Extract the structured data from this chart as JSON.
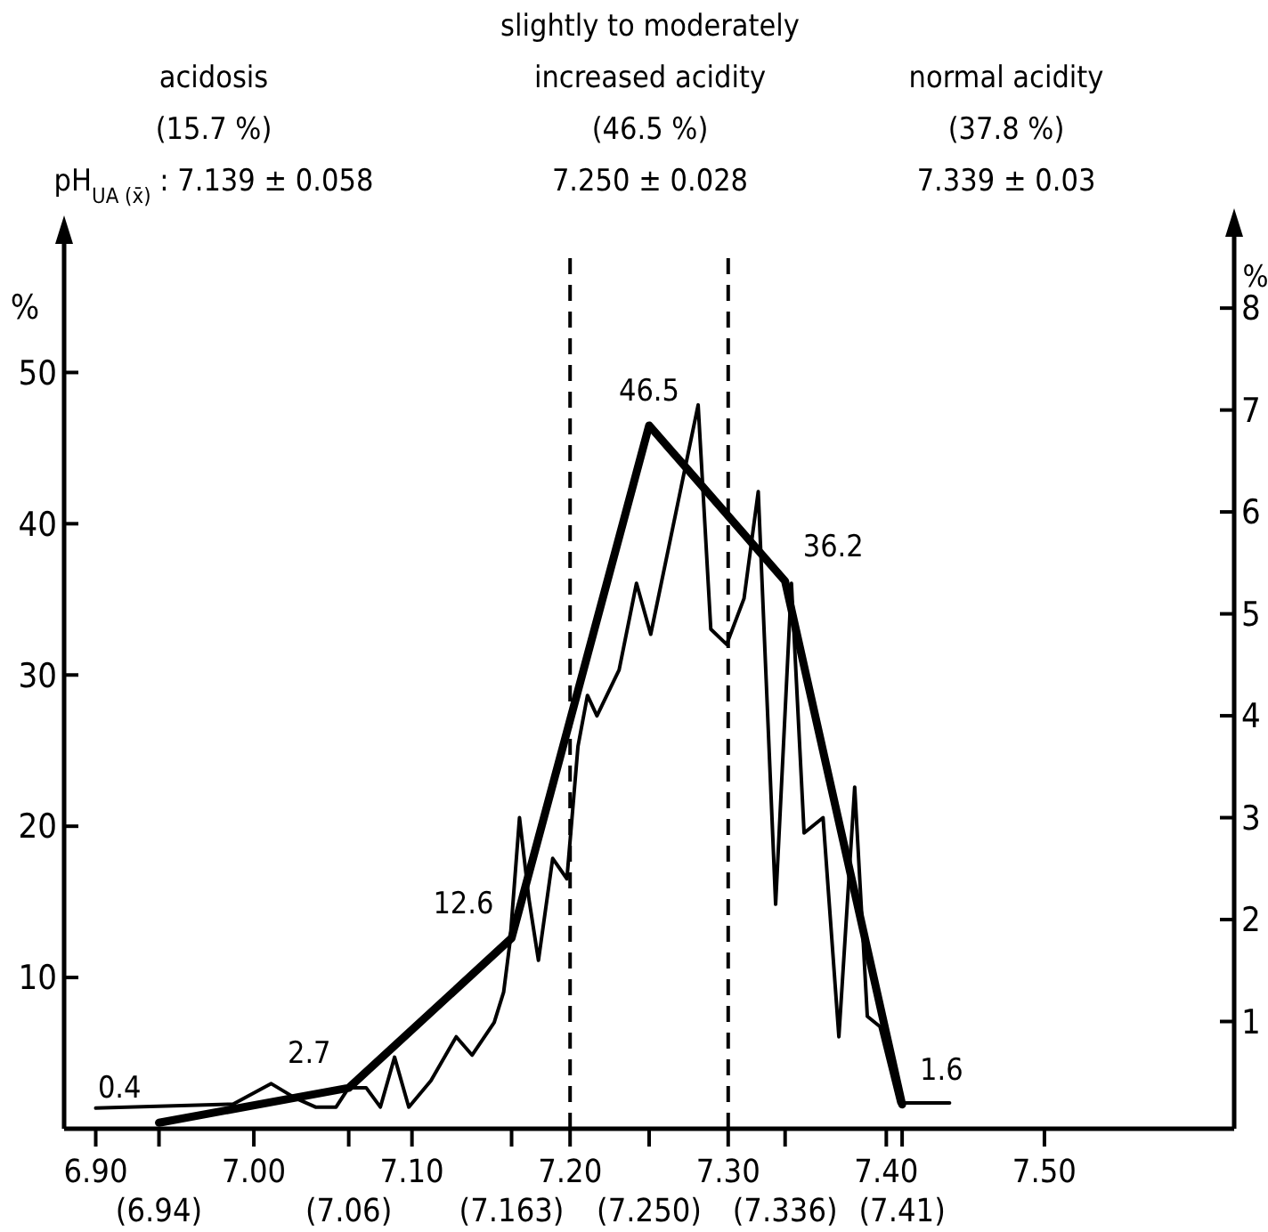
{
  "chart_data": {
    "type": "line",
    "annotations": [
      "acidosis\n(15.7 %)\npH$_{UA (x̄)}$ : 7.139 ± 0.058",
      "slightly to moderately\nincreased acidity\n(46.5 %)\n7.250 ± 0.028",
      "normal acidity\n(37.8 %)\n7.339 ± 0.03"
    ],
    "ylabel": "%",
    "y2label": "%",
    "xlim": [
      6.88,
      7.62
    ],
    "xticks": [
      {
        "value": 6.9,
        "label": "6.90"
      },
      {
        "value": 7.0,
        "label": "7.00"
      },
      {
        "value": 7.1,
        "label": "7.10"
      },
      {
        "value": 7.2,
        "label": "7.20"
      },
      {
        "value": 7.3,
        "label": "7.30"
      },
      {
        "value": 7.4,
        "label": "7.40"
      },
      {
        "value": 7.5,
        "label": "7.50"
      }
    ],
    "x2lim": [
      6.88,
      7.62
    ],
    "x2ticks": [
      {
        "value": 6.94,
        "label": "(6.94)"
      },
      {
        "value": 7.06,
        "label": "(7.06)"
      },
      {
        "value": 7.163,
        "label": "(7.163)"
      },
      {
        "value": 7.25,
        "label": "(7.250)"
      },
      {
        "value": 7.336,
        "label": "(7.336)"
      },
      {
        "value": 7.41,
        "label": "(7.41)"
      }
    ],
    "ylim": [
      0,
      58.5
    ],
    "yticks": [
      10,
      20,
      30,
      40,
      50
    ],
    "y2lim": [
      0,
      8.7
    ],
    "y2ticks": [
      1,
      2,
      3,
      4,
      5,
      6,
      7,
      8
    ],
    "ref_lines": [
      {
        "axis": "x",
        "value": 7.2,
        "line_style": "dashed"
      },
      {
        "axis": "x",
        "value": 7.3,
        "line_style": "dashed"
      }
    ],
    "grid": false,
    "marker": "none",
    "series": [
      {
        "color": "#000000",
        "x": [
          6.94,
          7.06,
          7.163,
          7.25,
          7.336,
          7.41
        ],
        "values": [
          0.4,
          2.7,
          12.6,
          46.5,
          36.2,
          1.6
        ],
        "value_labels": [
          "0.4",
          "2.7",
          "12.6",
          "46.5",
          "36.2",
          "1.6"
        ]
      },
      {
        "color": "#000000",
        "axis": "y2",
        "x": [
          6.9,
          6.987,
          7.011,
          7.026,
          7.039,
          7.052,
          7.06,
          7.071,
          7.08,
          7.089,
          7.098,
          7.112,
          7.128,
          7.138,
          7.152,
          7.158,
          7.162,
          7.168,
          7.174,
          7.18,
          7.189,
          7.198,
          7.205,
          7.211,
          7.217,
          7.231,
          7.242,
          7.251,
          7.281,
          7.289,
          7.299,
          7.31,
          7.319,
          7.33,
          7.34,
          7.348,
          7.36,
          7.37,
          7.38,
          7.388,
          7.396,
          7.408,
          7.44
        ],
        "values": [
          0.15,
          0.19,
          0.39,
          0.25,
          0.16,
          0.16,
          0.35,
          0.35,
          0.16,
          0.65,
          0.16,
          0.42,
          0.85,
          0.67,
          0.99,
          1.29,
          1.78,
          3.0,
          2.2,
          1.6,
          2.6,
          2.4,
          3.7,
          4.2,
          4.0,
          4.45,
          5.3,
          4.8,
          7.05,
          4.85,
          4.7,
          5.15,
          6.2,
          2.15,
          5.3,
          2.85,
          3.0,
          0.85,
          3.3,
          1.05,
          0.95,
          0.2,
          0.2
        ]
      }
    ]
  }
}
